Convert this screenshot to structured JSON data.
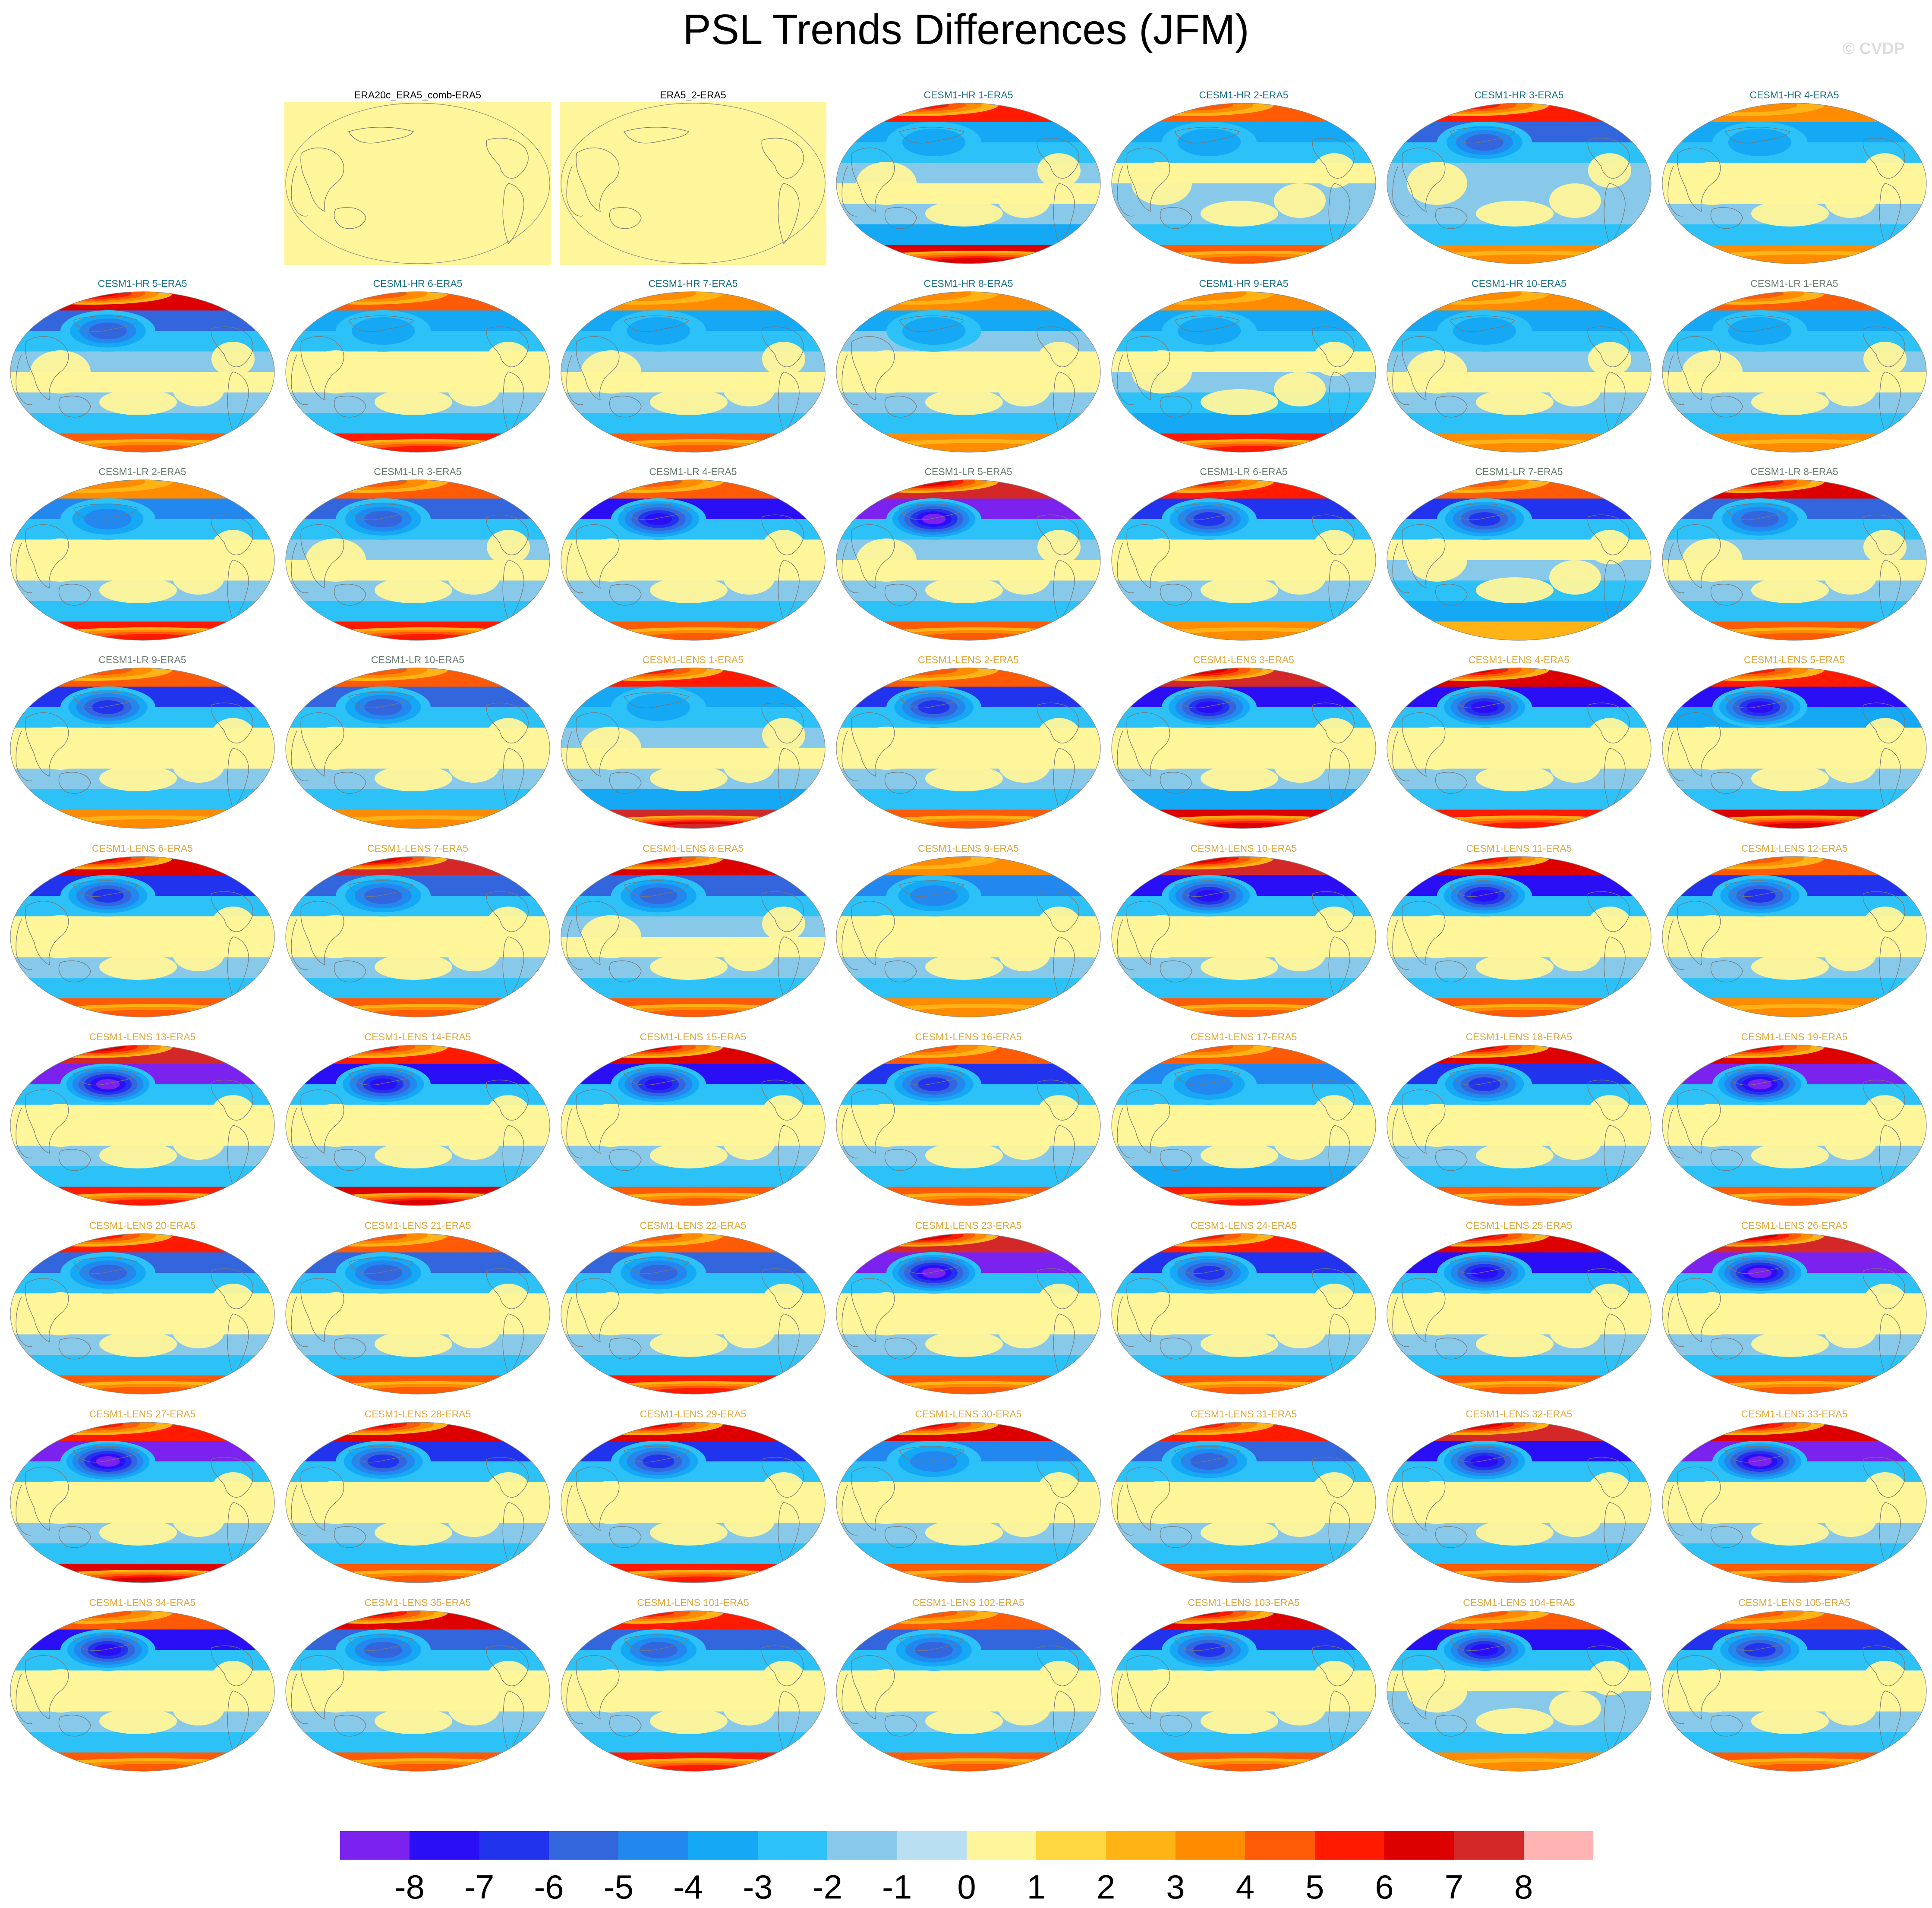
{
  "title": "PSL Trends Differences (JFM)",
  "watermark": "© CVDP",
  "colors": {
    "title_dark": "#000000",
    "title_hr": "#1a6f84",
    "title_lr": "#6a7c70",
    "title_lens": "#e0a83c",
    "land_outline": "#777777"
  },
  "panels": [
    {
      "label": "ERA20c_ERA5_comb-ERA5",
      "kind": "obs",
      "group": "dark",
      "pattern": [
        0,
        0,
        0,
        0,
        0,
        0,
        0,
        0
      ]
    },
    {
      "label": "ERA5_2-ERA5",
      "kind": "obs",
      "group": "dark",
      "pattern": [
        0,
        0,
        0,
        0,
        0,
        0,
        0,
        0
      ]
    },
    {
      "label": "CESM1-HR 1-ERA5",
      "kind": "map",
      "group": "hr",
      "pattern": [
        5,
        -3,
        -2,
        -1,
        0,
        -1,
        -3,
        6
      ]
    },
    {
      "label": "CESM1-HR 2-ERA5",
      "kind": "map",
      "group": "hr",
      "pattern": [
        4,
        -3,
        -2,
        0,
        -1,
        -1,
        -2,
        4
      ]
    },
    {
      "label": "CESM1-HR 3-ERA5",
      "kind": "map",
      "group": "hr",
      "pattern": [
        5,
        -5,
        -2,
        -1,
        -1,
        -1,
        -2,
        3
      ]
    },
    {
      "label": "CESM1-HR 4-ERA5",
      "kind": "map",
      "group": "hr",
      "pattern": [
        3,
        -3,
        -2,
        0,
        0,
        -1,
        -2,
        3
      ]
    },
    {
      "label": "CESM1-HR 5-ERA5",
      "kind": "map",
      "group": "hr",
      "pattern": [
        6,
        -5,
        -2,
        -1,
        0,
        -1,
        -2,
        4
      ]
    },
    {
      "label": "CESM1-HR 6-ERA5",
      "kind": "map",
      "group": "hr",
      "pattern": [
        4,
        -3,
        -2,
        0,
        0,
        -1,
        -2,
        5
      ]
    },
    {
      "label": "CESM1-HR 7-ERA5",
      "kind": "map",
      "group": "hr",
      "pattern": [
        3,
        -3,
        -2,
        -1,
        0,
        -1,
        -2,
        4
      ]
    },
    {
      "label": "CESM1-HR 8-ERA5",
      "kind": "map",
      "group": "hr",
      "pattern": [
        3,
        -3,
        -1,
        0,
        0,
        -1,
        -2,
        3
      ]
    },
    {
      "label": "CESM1-HR 9-ERA5",
      "kind": "map",
      "group": "hr",
      "pattern": [
        3,
        -3,
        -2,
        0,
        -1,
        -2,
        -3,
        5
      ]
    },
    {
      "label": "CESM1-HR 10-ERA5",
      "kind": "map",
      "group": "hr",
      "pattern": [
        3,
        -3,
        -2,
        -1,
        0,
        -1,
        -2,
        3
      ]
    },
    {
      "label": "CESM1-LR 1-ERA5",
      "kind": "map",
      "group": "lr",
      "pattern": [
        4,
        -3,
        -2,
        -1,
        0,
        -1,
        -2,
        3
      ]
    },
    {
      "label": "CESM1-LR 2-ERA5",
      "kind": "map",
      "group": "lr",
      "pattern": [
        3,
        -4,
        -2,
        0,
        0,
        -1,
        -2,
        5
      ]
    },
    {
      "label": "CESM1-LR 3-ERA5",
      "kind": "map",
      "group": "lr",
      "pattern": [
        4,
        -5,
        -2,
        -1,
        0,
        -1,
        -2,
        5
      ]
    },
    {
      "label": "CESM1-LR 4-ERA5",
      "kind": "map",
      "group": "lr",
      "pattern": [
        4,
        -7,
        -2,
        0,
        0,
        -1,
        -2,
        4
      ]
    },
    {
      "label": "CESM1-LR 5-ERA5",
      "kind": "map",
      "group": "lr",
      "pattern": [
        7,
        -8,
        -2,
        -1,
        0,
        -1,
        -2,
        4
      ]
    },
    {
      "label": "CESM1-LR 6-ERA5",
      "kind": "map",
      "group": "lr",
      "pattern": [
        5,
        -6,
        -2,
        0,
        0,
        -1,
        -2,
        3
      ]
    },
    {
      "label": "CESM1-LR 7-ERA5",
      "kind": "map",
      "group": "lr",
      "pattern": [
        4,
        -6,
        -2,
        0,
        -1,
        -2,
        -3,
        2
      ]
    },
    {
      "label": "CESM1-LR 8-ERA5",
      "kind": "map",
      "group": "lr",
      "pattern": [
        6,
        -5,
        -2,
        -1,
        0,
        -1,
        -2,
        4
      ]
    },
    {
      "label": "CESM1-LR 9-ERA5",
      "kind": "map",
      "group": "lr",
      "pattern": [
        4,
        -6,
        -2,
        0,
        0,
        -1,
        -2,
        3
      ]
    },
    {
      "label": "CESM1-LR 10-ERA5",
      "kind": "map",
      "group": "lr",
      "pattern": [
        4,
        -5,
        -2,
        0,
        0,
        -1,
        -2,
        3
      ]
    },
    {
      "label": "CESM1-LENS 1-ERA5",
      "kind": "map",
      "group": "lens",
      "pattern": [
        5,
        -3,
        -2,
        -1,
        0,
        -1,
        -3,
        7
      ]
    },
    {
      "label": "CESM1-LENS 2-ERA5",
      "kind": "map",
      "group": "lens",
      "pattern": [
        4,
        -6,
        -2,
        0,
        0,
        -1,
        -2,
        4
      ]
    },
    {
      "label": "CESM1-LENS 3-ERA5",
      "kind": "map",
      "group": "lens",
      "pattern": [
        7,
        -7,
        -2,
        0,
        0,
        -1,
        -3,
        6
      ]
    },
    {
      "label": "CESM1-LENS 4-ERA5",
      "kind": "map",
      "group": "lens",
      "pattern": [
        6,
        -7,
        -2,
        0,
        0,
        -1,
        -2,
        5
      ]
    },
    {
      "label": "CESM1-LENS 5-ERA5",
      "kind": "map",
      "group": "lens",
      "pattern": [
        5,
        -7,
        -3,
        0,
        0,
        -1,
        -2,
        6
      ]
    },
    {
      "label": "CESM1-LENS 6-ERA5",
      "kind": "map",
      "group": "lens",
      "pattern": [
        6,
        -6,
        -2,
        0,
        0,
        -1,
        -2,
        4
      ]
    },
    {
      "label": "CESM1-LENS 7-ERA5",
      "kind": "map",
      "group": "lens",
      "pattern": [
        7,
        -5,
        -2,
        0,
        0,
        -1,
        -2,
        4
      ]
    },
    {
      "label": "CESM1-LENS 8-ERA5",
      "kind": "map",
      "group": "lens",
      "pattern": [
        6,
        -5,
        -2,
        -1,
        0,
        -1,
        -2,
        4
      ]
    },
    {
      "label": "CESM1-LENS 9-ERA5",
      "kind": "map",
      "group": "lens",
      "pattern": [
        3,
        -4,
        -2,
        0,
        0,
        -1,
        -2,
        3
      ]
    },
    {
      "label": "CESM1-LENS 10-ERA5",
      "kind": "map",
      "group": "lens",
      "pattern": [
        7,
        -7,
        -2,
        0,
        0,
        -1,
        -2,
        4
      ]
    },
    {
      "label": "CESM1-LENS 11-ERA5",
      "kind": "map",
      "group": "lens",
      "pattern": [
        6,
        -7,
        -2,
        0,
        0,
        -1,
        -2,
        4
      ]
    },
    {
      "label": "CESM1-LENS 12-ERA5",
      "kind": "map",
      "group": "lens",
      "pattern": [
        4,
        -6,
        -2,
        0,
        0,
        -1,
        -2,
        3
      ]
    },
    {
      "label": "CESM1-LENS 13-ERA5",
      "kind": "map",
      "group": "lens",
      "pattern": [
        7,
        -8,
        -2,
        0,
        0,
        -1,
        -2,
        5
      ]
    },
    {
      "label": "CESM1-LENS 14-ERA5",
      "kind": "map",
      "group": "lens",
      "pattern": [
        5,
        -7,
        -2,
        0,
        0,
        -1,
        -2,
        6
      ]
    },
    {
      "label": "CESM1-LENS 15-ERA5",
      "kind": "map",
      "group": "lens",
      "pattern": [
        6,
        -7,
        -2,
        0,
        0,
        -1,
        -2,
        4
      ]
    },
    {
      "label": "CESM1-LENS 16-ERA5",
      "kind": "map",
      "group": "lens",
      "pattern": [
        4,
        -6,
        -2,
        0,
        0,
        -1,
        -2,
        4
      ]
    },
    {
      "label": "CESM1-LENS 17-ERA5",
      "kind": "map",
      "group": "lens",
      "pattern": [
        4,
        -4,
        -2,
        0,
        0,
        -1,
        -3,
        5
      ]
    },
    {
      "label": "CESM1-LENS 18-ERA5",
      "kind": "map",
      "group": "lens",
      "pattern": [
        6,
        -6,
        -2,
        0,
        0,
        -1,
        -2,
        4
      ]
    },
    {
      "label": "CESM1-LENS 19-ERA5",
      "kind": "map",
      "group": "lens",
      "pattern": [
        6,
        -8,
        -2,
        0,
        0,
        -1,
        -2,
        4
      ]
    },
    {
      "label": "CESM1-LENS 20-ERA5",
      "kind": "map",
      "group": "lens",
      "pattern": [
        5,
        -5,
        -2,
        0,
        0,
        -1,
        -2,
        4
      ]
    },
    {
      "label": "CESM1-LENS 21-ERA5",
      "kind": "map",
      "group": "lens",
      "pattern": [
        4,
        -5,
        -2,
        0,
        0,
        -1,
        -2,
        4
      ]
    },
    {
      "label": "CESM1-LENS 22-ERA5",
      "kind": "map",
      "group": "lens",
      "pattern": [
        4,
        -5,
        -2,
        0,
        0,
        -1,
        -2,
        5
      ]
    },
    {
      "label": "CESM1-LENS 23-ERA5",
      "kind": "map",
      "group": "lens",
      "pattern": [
        7,
        -8,
        -2,
        0,
        0,
        -1,
        -2,
        4
      ]
    },
    {
      "label": "CESM1-LENS 24-ERA5",
      "kind": "map",
      "group": "lens",
      "pattern": [
        5,
        -6,
        -2,
        0,
        0,
        -1,
        -2,
        4
      ]
    },
    {
      "label": "CESM1-LENS 25-ERA5",
      "kind": "map",
      "group": "lens",
      "pattern": [
        6,
        -7,
        -2,
        0,
        0,
        -1,
        -2,
        4
      ]
    },
    {
      "label": "CESM1-LENS 26-ERA5",
      "kind": "map",
      "group": "lens",
      "pattern": [
        7,
        -8,
        -2,
        0,
        0,
        -1,
        -2,
        4
      ]
    },
    {
      "label": "CESM1-LENS 27-ERA5",
      "kind": "map",
      "group": "lens",
      "pattern": [
        5,
        -8,
        -2,
        0,
        0,
        -1,
        -2,
        6
      ]
    },
    {
      "label": "CESM1-LENS 28-ERA5",
      "kind": "map",
      "group": "lens",
      "pattern": [
        6,
        -6,
        -2,
        0,
        0,
        -1,
        -2,
        4
      ]
    },
    {
      "label": "CESM1-LENS 29-ERA5",
      "kind": "map",
      "group": "lens",
      "pattern": [
        6,
        -6,
        -2,
        0,
        0,
        -1,
        -2,
        5
      ]
    },
    {
      "label": "CESM1-LENS 30-ERA5",
      "kind": "map",
      "group": "lens",
      "pattern": [
        6,
        -4,
        -2,
        0,
        0,
        -1,
        -2,
        4
      ]
    },
    {
      "label": "CESM1-LENS 31-ERA5",
      "kind": "map",
      "group": "lens",
      "pattern": [
        5,
        -5,
        -2,
        0,
        0,
        -1,
        -2,
        4
      ]
    },
    {
      "label": "CESM1-LENS 32-ERA5",
      "kind": "map",
      "group": "lens",
      "pattern": [
        7,
        -7,
        -2,
        0,
        0,
        -1,
        -2,
        4
      ]
    },
    {
      "label": "CESM1-LENS 33-ERA5",
      "kind": "map",
      "group": "lens",
      "pattern": [
        6,
        -8,
        -2,
        0,
        0,
        -1,
        -2,
        4
      ]
    },
    {
      "label": "CESM1-LENS 34-ERA5",
      "kind": "map",
      "group": "lens",
      "pattern": [
        4,
        -7,
        -2,
        0,
        0,
        -1,
        -2,
        4
      ]
    },
    {
      "label": "CESM1-LENS 35-ERA5",
      "kind": "map",
      "group": "lens",
      "pattern": [
        6,
        -5,
        -2,
        0,
        0,
        -1,
        -2,
        4
      ]
    },
    {
      "label": "CESM1-LENS 101-ERA5",
      "kind": "map",
      "group": "lens",
      "pattern": [
        5,
        -5,
        -2,
        0,
        0,
        -1,
        -2,
        5
      ]
    },
    {
      "label": "CESM1-LENS 102-ERA5",
      "kind": "map",
      "group": "lens",
      "pattern": [
        4,
        -5,
        -2,
        0,
        0,
        -1,
        -2,
        4
      ]
    },
    {
      "label": "CESM1-LENS 103-ERA5",
      "kind": "map",
      "group": "lens",
      "pattern": [
        6,
        -6,
        -2,
        0,
        0,
        -1,
        -2,
        4
      ]
    },
    {
      "label": "CESM1-LENS 104-ERA5",
      "kind": "map",
      "group": "lens",
      "pattern": [
        4,
        -7,
        -2,
        0,
        -1,
        -1,
        -2,
        3
      ]
    },
    {
      "label": "CESM1-LENS 105-ERA5",
      "kind": "map",
      "group": "lens",
      "pattern": [
        4,
        -6,
        -2,
        0,
        0,
        -1,
        -2,
        4
      ]
    }
  ],
  "colorbar": {
    "labels": [
      "-8",
      "-7",
      "-6",
      "-5",
      "-4",
      "-3",
      "-2",
      "-1",
      "0",
      "1",
      "2",
      "3",
      "4",
      "5",
      "6",
      "7",
      "8"
    ],
    "colors": [
      "#7b22ee",
      "#2a0ff6",
      "#2233ee",
      "#3366dd",
      "#2288f0",
      "#15a8f5",
      "#2cc2f8",
      "#88c9ea",
      "#b8e0f2",
      "#fff59a",
      "#ffd840",
      "#ffb315",
      "#ff8b00",
      "#ff5a05",
      "#ff1a00",
      "#dd0000",
      "#d42828",
      "#ffb3b3"
    ]
  }
}
